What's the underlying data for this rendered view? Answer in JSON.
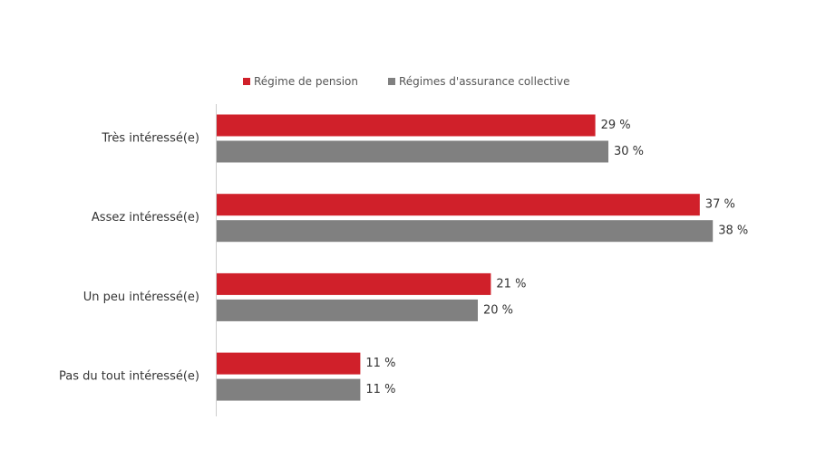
{
  "chart_data": {
    "type": "hbar",
    "categories": [
      "Très intéressé(e)",
      "Assez intéressé(e)",
      "Un peu intéressé(e)",
      "Pas du tout intéressé(e)"
    ],
    "series": [
      {
        "name": "Régime de pension",
        "color": "#d0202a",
        "values": [
          29,
          37,
          21,
          11
        ],
        "value_labels": [
          "29 %",
          "37 %",
          "21 %",
          "11 %"
        ]
      },
      {
        "name": "Régimes d'assurance collective",
        "color": "#808080",
        "values": [
          30,
          38,
          20,
          11
        ],
        "value_labels": [
          "30 %",
          "38 %",
          "20 %",
          "11 %"
        ]
      }
    ],
    "legend": "top"
  }
}
